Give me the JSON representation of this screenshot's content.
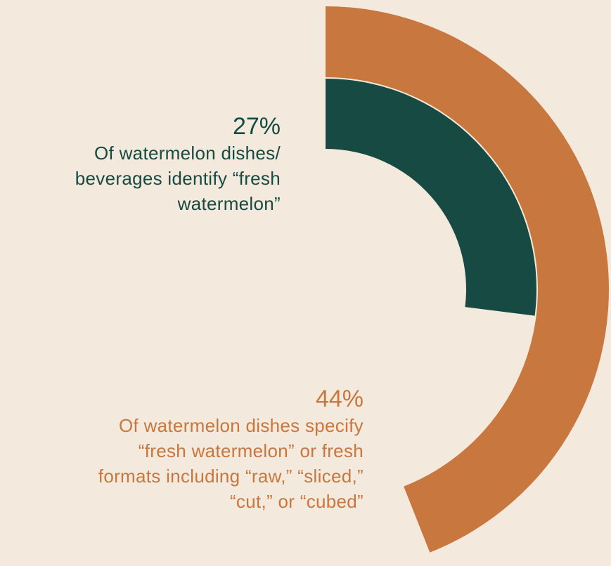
{
  "colors": {
    "background": "#f3e9dc",
    "outer_ring": "#c8773e",
    "inner_ring": "#174a43"
  },
  "chart_data": {
    "type": "pie",
    "variant": "radial-bar",
    "series": [
      {
        "value_label": "44%",
        "value": 44,
        "color": "#c8773e",
        "label": "Of watermelon dishes specify “fresh watermelon” or fresh formats including “raw,” “sliced,” “cut,” or “cubed”"
      },
      {
        "value_label": "27%",
        "value": 27,
        "color": "#174a43",
        "label": "Of watermelon dishes/ beverages identify “fresh watermelon”"
      }
    ]
  },
  "stats": {
    "inner": {
      "value": "27%",
      "lines": [
        "Of watermelon dishes/",
        "beverages identify “fresh",
        "watermelon”"
      ]
    },
    "outer": {
      "value": "44%",
      "lines": [
        "Of watermelon dishes specify",
        "“fresh watermelon” or fresh",
        "formats including “raw,” “sliced,”",
        "“cut,” or “cubed”"
      ]
    }
  }
}
